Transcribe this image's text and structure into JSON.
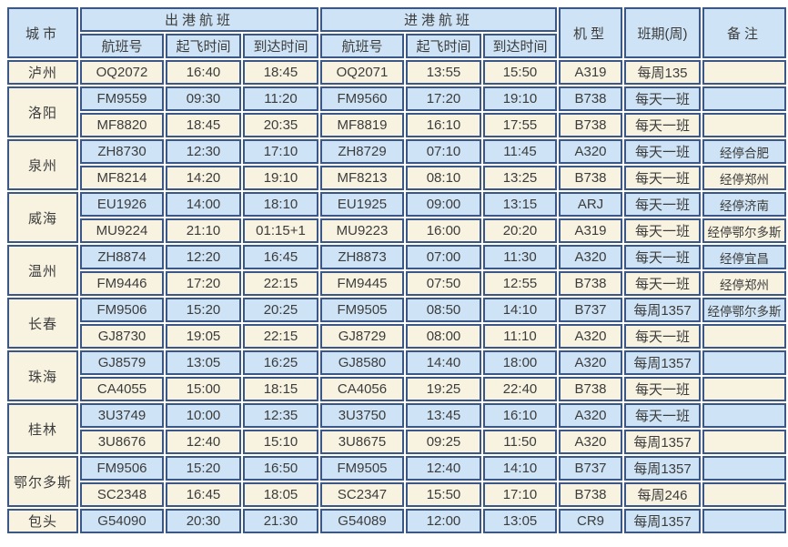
{
  "colors": {
    "border": "#3b5786",
    "row_blue": "#cee3f5",
    "row_cream": "#f8f3e1",
    "text": "#3c3c3c"
  },
  "table": {
    "header": {
      "city": "城市",
      "departure_group": "出港航班",
      "arrival_group": "进港航班",
      "flight_no": "航班号",
      "takeoff_time": "起飞时间",
      "arrival_time": "到达时间",
      "aircraft": "机型",
      "schedule": "班期(周)",
      "remarks": "备注"
    },
    "rows": [
      {
        "city": "泸州",
        "span": 1,
        "dep_no": "OQ2072",
        "dep_dep": "16:40",
        "dep_arr": "18:45",
        "arr_no": "OQ2071",
        "arr_dep": "13:55",
        "arr_arr": "15:50",
        "type": "A319",
        "sched": "每周135",
        "remark": ""
      },
      {
        "city": "洛阳",
        "span": 2,
        "dep_no": "FM9559",
        "dep_dep": "09:30",
        "dep_arr": "11:20",
        "arr_no": "FM9560",
        "arr_dep": "17:20",
        "arr_arr": "19:10",
        "type": "B738",
        "sched": "每天一班",
        "remark": ""
      },
      {
        "city": "",
        "span": 0,
        "dep_no": "MF8820",
        "dep_dep": "18:45",
        "dep_arr": "20:35",
        "arr_no": "MF8819",
        "arr_dep": "16:10",
        "arr_arr": "17:55",
        "type": "B738",
        "sched": "每天一班",
        "remark": ""
      },
      {
        "city": "泉州",
        "span": 2,
        "dep_no": "ZH8730",
        "dep_dep": "12:30",
        "dep_arr": "17:10",
        "arr_no": "ZH8729",
        "arr_dep": "07:10",
        "arr_arr": "11:45",
        "type": "A320",
        "sched": "每天一班",
        "remark": "经停合肥"
      },
      {
        "city": "",
        "span": 0,
        "dep_no": "MF8214",
        "dep_dep": "14:20",
        "dep_arr": "19:10",
        "arr_no": "MF8213",
        "arr_dep": "08:10",
        "arr_arr": "13:25",
        "type": "B738",
        "sched": "每天一班",
        "remark": "经停郑州"
      },
      {
        "city": "威海",
        "span": 2,
        "dep_no": "EU1926",
        "dep_dep": "14:00",
        "dep_arr": "18:10",
        "arr_no": "EU1925",
        "arr_dep": "09:00",
        "arr_arr": "13:15",
        "type": "ARJ",
        "sched": "每天一班",
        "remark": "经停济南"
      },
      {
        "city": "",
        "span": 0,
        "dep_no": "MU9224",
        "dep_dep": "21:10",
        "dep_arr": "01:15+1",
        "arr_no": "MU9223",
        "arr_dep": "16:00",
        "arr_arr": "20:20",
        "type": "A319",
        "sched": "每天一班",
        "remark": "经停鄂尔多斯"
      },
      {
        "city": "温州",
        "span": 2,
        "dep_no": "ZH8874",
        "dep_dep": "12:20",
        "dep_arr": "16:45",
        "arr_no": "ZH8873",
        "arr_dep": "07:00",
        "arr_arr": "11:30",
        "type": "A320",
        "sched": "每天一班",
        "remark": "经停宜昌"
      },
      {
        "city": "",
        "span": 0,
        "dep_no": "FM9446",
        "dep_dep": "17:20",
        "dep_arr": "22:15",
        "arr_no": "FM9445",
        "arr_dep": "07:50",
        "arr_arr": "12:55",
        "type": "B738",
        "sched": "每天一班",
        "remark": "经停郑州"
      },
      {
        "city": "长春",
        "span": 2,
        "dep_no": "FM9506",
        "dep_dep": "15:20",
        "dep_arr": "20:25",
        "arr_no": "FM9505",
        "arr_dep": "08:50",
        "arr_arr": "14:10",
        "type": "B737",
        "sched": "每周1357",
        "remark": "经停鄂尔多斯"
      },
      {
        "city": "",
        "span": 0,
        "dep_no": "GJ8730",
        "dep_dep": "19:05",
        "dep_arr": "22:15",
        "arr_no": "GJ8729",
        "arr_dep": "08:00",
        "arr_arr": "11:10",
        "type": "A320",
        "sched": "每天一班",
        "remark": ""
      },
      {
        "city": "珠海",
        "span": 2,
        "dep_no": "GJ8579",
        "dep_dep": "13:05",
        "dep_arr": "16:25",
        "arr_no": "GJ8580",
        "arr_dep": "14:40",
        "arr_arr": "18:00",
        "type": "A320",
        "sched": "每周1357",
        "remark": ""
      },
      {
        "city": "",
        "span": 0,
        "dep_no": "CA4055",
        "dep_dep": "15:00",
        "dep_arr": "18:15",
        "arr_no": "CA4056",
        "arr_dep": "19:25",
        "arr_arr": "22:40",
        "type": "B738",
        "sched": "每天一班",
        "remark": ""
      },
      {
        "city": "桂林",
        "span": 2,
        "dep_no": "3U3749",
        "dep_dep": "10:00",
        "dep_arr": "12:35",
        "arr_no": "3U3750",
        "arr_dep": "13:45",
        "arr_arr": "16:10",
        "type": "A320",
        "sched": "每天一班",
        "remark": ""
      },
      {
        "city": "",
        "span": 0,
        "dep_no": "3U8676",
        "dep_dep": "12:40",
        "dep_arr": "15:10",
        "arr_no": "3U8675",
        "arr_dep": "09:25",
        "arr_arr": "11:50",
        "type": "A320",
        "sched": "每周1357",
        "remark": ""
      },
      {
        "city": "鄂尔多斯",
        "span": 2,
        "dep_no": "FM9506",
        "dep_dep": "15:20",
        "dep_arr": "16:50",
        "arr_no": "FM9505",
        "arr_dep": "12:40",
        "arr_arr": "14:10",
        "type": "B737",
        "sched": "每周1357",
        "remark": ""
      },
      {
        "city": "",
        "span": 0,
        "dep_no": "SC2348",
        "dep_dep": "16:45",
        "dep_arr": "18:05",
        "arr_no": "SC2347",
        "arr_dep": "15:50",
        "arr_arr": "17:10",
        "type": "B738",
        "sched": "每周246",
        "remark": ""
      },
      {
        "city": "包头",
        "span": 1,
        "dep_no": "G54090",
        "dep_dep": "20:30",
        "dep_arr": "21:30",
        "arr_no": "G54089",
        "arr_dep": "12:00",
        "arr_arr": "13:05",
        "type": "CR9",
        "sched": "每周1357",
        "remark": ""
      }
    ]
  }
}
